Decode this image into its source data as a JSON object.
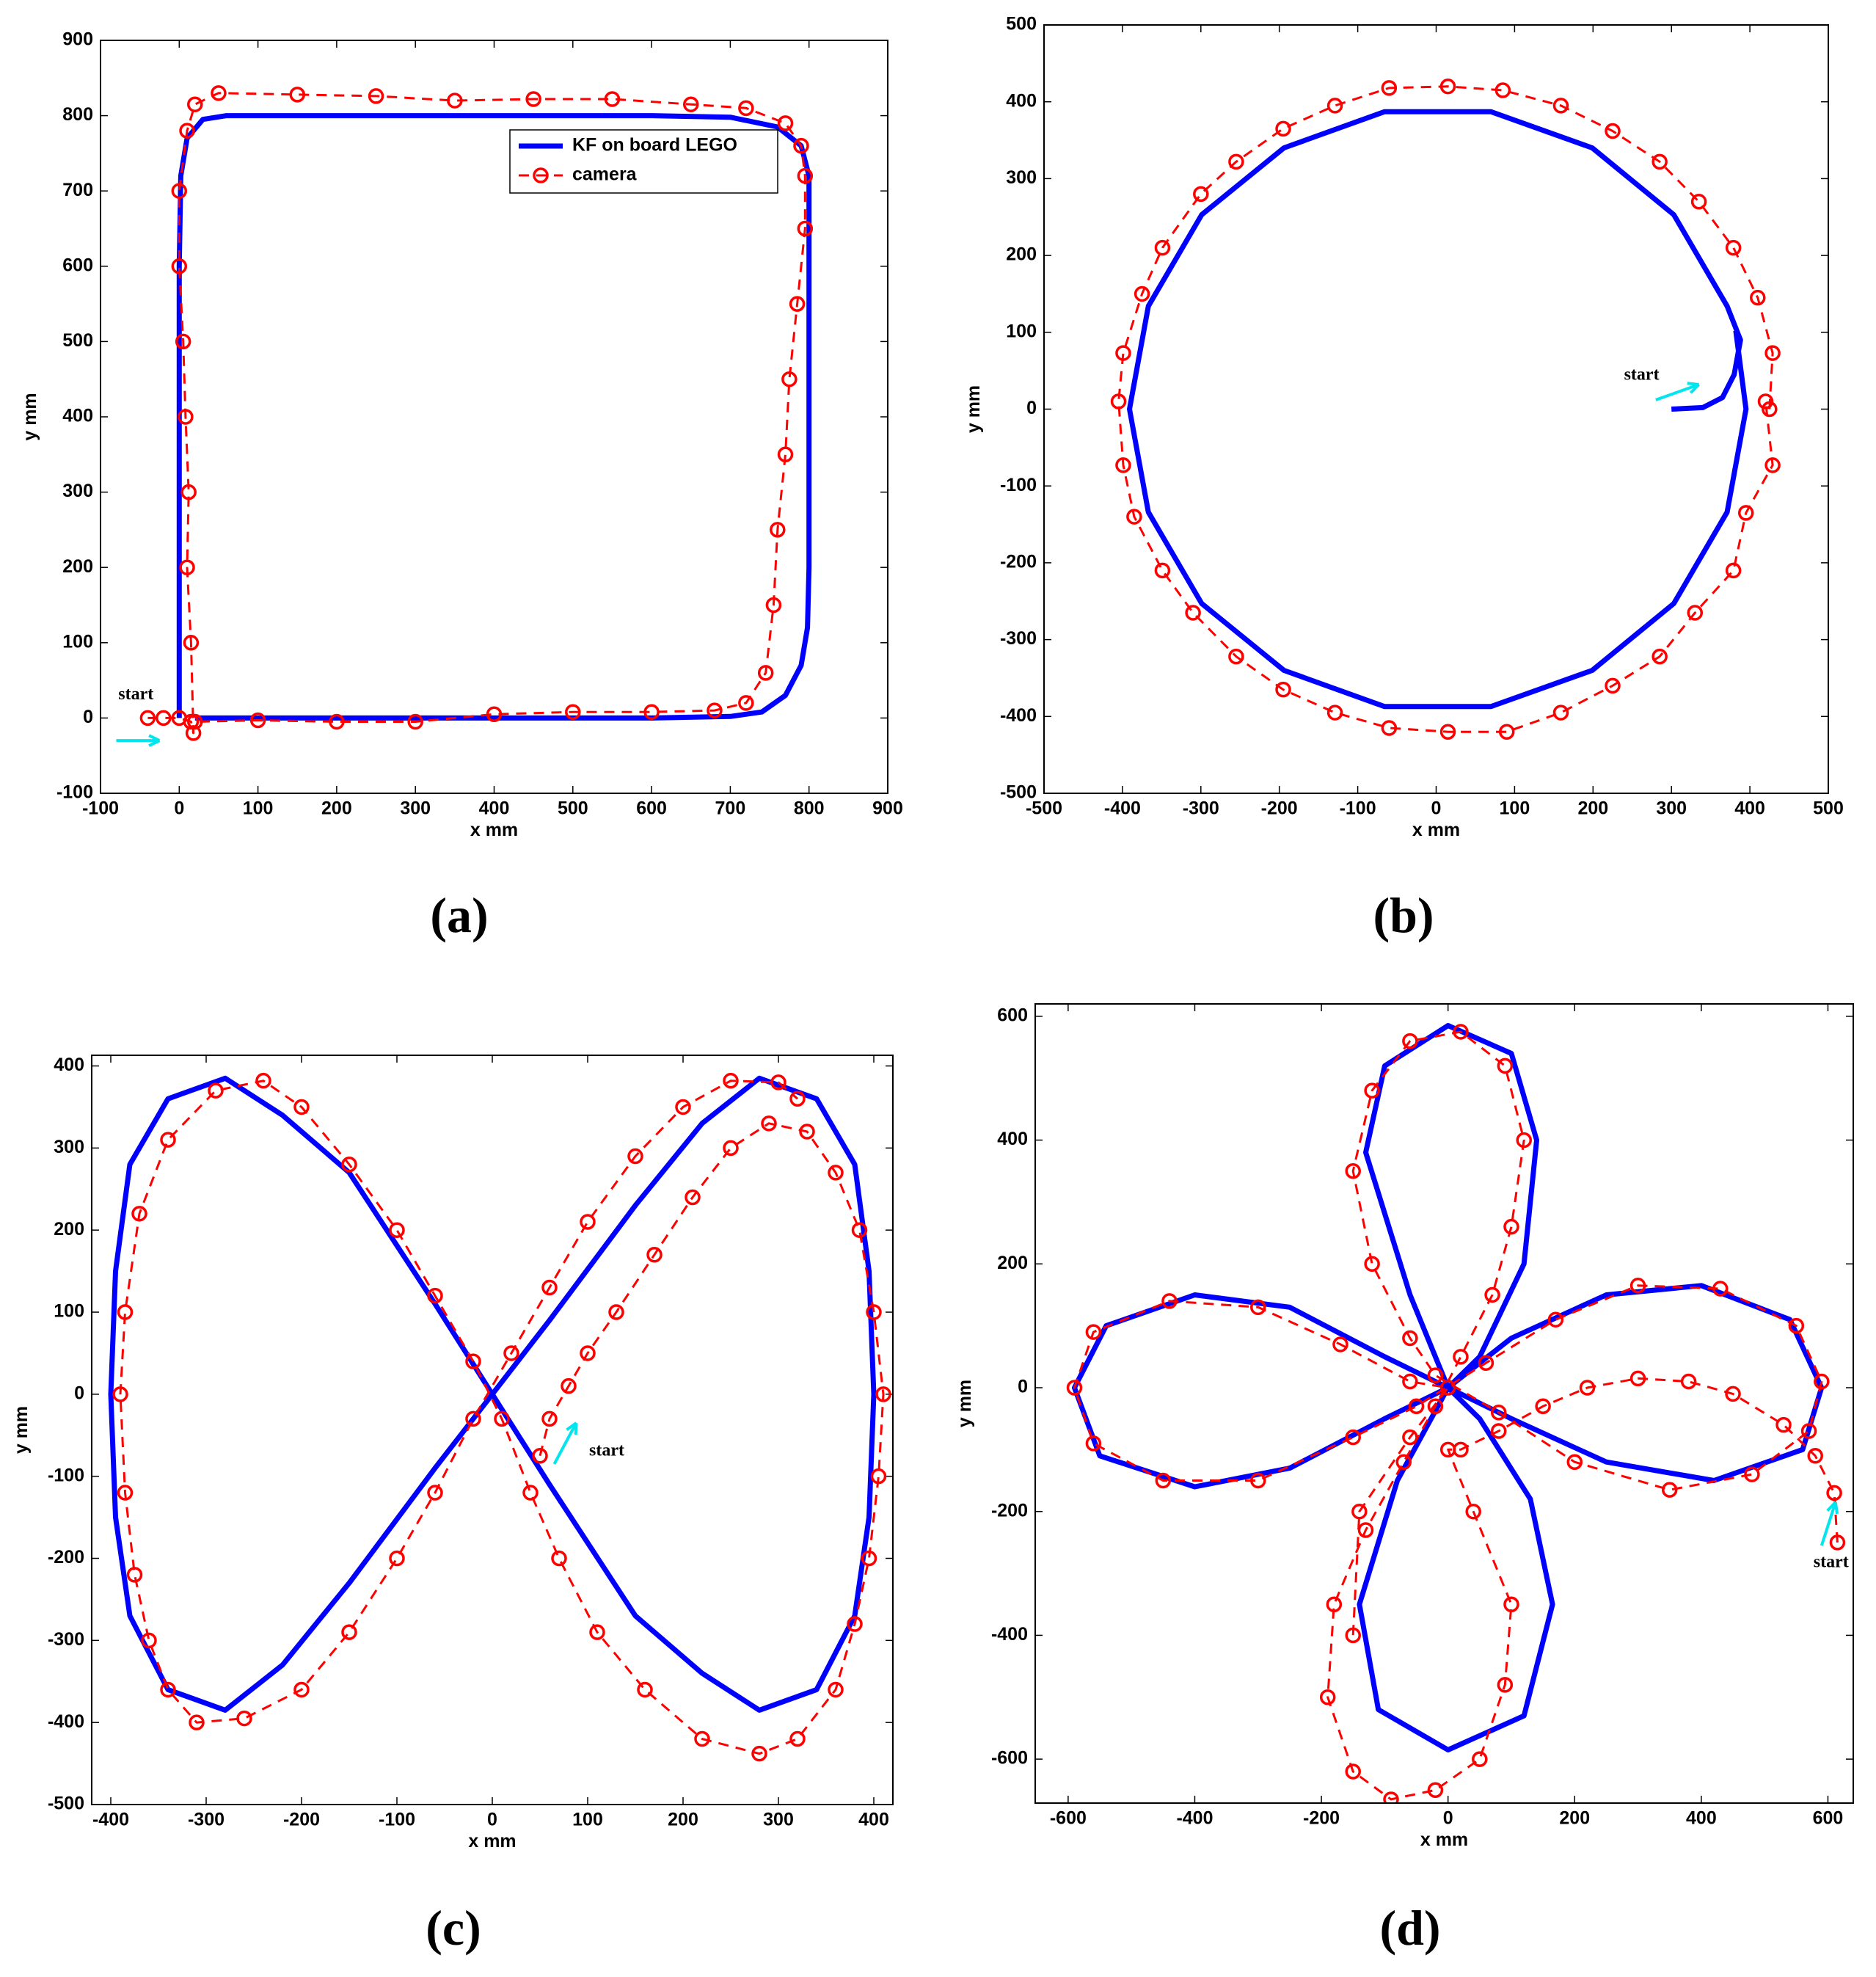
{
  "chart_data": [
    {
      "type": "line",
      "label": "(a)",
      "xlabel": "x mm",
      "ylabel": "y mm",
      "annotation": "start",
      "legend": "upper right",
      "xlim": [
        -100,
        900
      ],
      "ylim": [
        -100,
        900
      ],
      "xticks": [
        -100,
        0,
        100,
        200,
        300,
        400,
        500,
        600,
        700,
        800,
        900
      ],
      "yticks": [
        -100,
        0,
        100,
        200,
        300,
        400,
        500,
        600,
        700,
        800,
        900
      ],
      "series": [
        {
          "name": "KF on board LEGO",
          "color": "#0000ff",
          "linestyle": "solid",
          "x": [
            0,
            0,
            0,
            0,
            2,
            10,
            30,
            60,
            200,
            400,
            600,
            700,
            760,
            790,
            800,
            800,
            800,
            800,
            798,
            790,
            770,
            740,
            700,
            600,
            400,
            200,
            20
          ],
          "values": [
            0,
            200,
            400,
            600,
            720,
            770,
            795,
            800,
            800,
            800,
            800,
            798,
            785,
            760,
            720,
            600,
            400,
            200,
            120,
            70,
            30,
            8,
            2,
            0,
            0,
            0,
            0
          ]
        },
        {
          "name": "camera",
          "color": "#ff0000",
          "linestyle": "dashed",
          "marker": "o",
          "x": [
            -40,
            -20,
            0,
            15,
            18,
            15,
            10,
            12,
            8,
            5,
            0,
            0,
            10,
            20,
            50,
            150,
            250,
            350,
            450,
            550,
            650,
            720,
            770,
            790,
            795,
            795,
            785,
            775,
            770,
            760,
            755,
            745,
            720,
            680,
            600,
            500,
            400,
            300,
            200,
            100,
            20
          ],
          "values": [
            0,
            0,
            0,
            -5,
            -20,
            100,
            200,
            300,
            400,
            500,
            600,
            700,
            780,
            815,
            830,
            828,
            826,
            820,
            822,
            822,
            815,
            810,
            790,
            760,
            720,
            650,
            550,
            450,
            350,
            250,
            150,
            60,
            20,
            10,
            8,
            8,
            5,
            -5,
            -5,
            -3,
            -5
          ]
        }
      ]
    },
    {
      "type": "line",
      "label": "(b)",
      "xlabel": "x mm",
      "ylabel": "y mm",
      "annotation": "start",
      "xlim": [
        -500,
        500
      ],
      "ylim": [
        -500,
        500
      ],
      "xticks": [
        -500,
        -400,
        -300,
        -200,
        -100,
        0,
        100,
        200,
        300,
        400,
        500
      ],
      "yticks": [
        -500,
        -400,
        -300,
        -200,
        -100,
        0,
        100,
        200,
        300,
        400,
        500
      ],
      "series": [
        {
          "color": "#0000ff",
          "linestyle": "solid",
          "x": [
            300,
            340,
            365,
            380,
            388,
            371,
            303,
            199,
            70,
            -66,
            -194,
            -299,
            -367,
            -391,
            -367,
            -299,
            -194,
            -66,
            70,
            199,
            303,
            371,
            395,
            382
          ],
          "values": [
            0,
            2,
            15,
            45,
            90,
            134,
            253,
            340,
            387,
            387,
            340,
            253,
            134,
            0,
            -134,
            -253,
            -340,
            -387,
            -387,
            -340,
            -253,
            -134,
            0,
            102
          ]
        },
        {
          "color": "#ff0000",
          "linestyle": "dashed",
          "marker": "o",
          "x": [
            425,
            429,
            410,
            379,
            335,
            285,
            225,
            159,
            85,
            15,
            -60,
            -129,
            -195,
            -255,
            -300,
            -349,
            -375,
            -399,
            -405,
            -399,
            -385,
            -349,
            -310,
            -255,
            -195,
            -129,
            -60,
            15,
            90,
            159,
            225,
            285,
            330,
            379,
            395,
            429,
            420
          ],
          "values": [
            0,
            73,
            145,
            210,
            270,
            322,
            362,
            395,
            415,
            420,
            418,
            395,
            365,
            322,
            280,
            210,
            150,
            73,
            10,
            -73,
            -140,
            -210,
            -265,
            -322,
            -365,
            -395,
            -415,
            -420,
            -420,
            -395,
            -360,
            -322,
            -265,
            -210,
            -135,
            -73,
            10
          ]
        }
      ]
    },
    {
      "type": "line",
      "label": "(c)",
      "xlabel": "x mm",
      "ylabel": "y mm",
      "annotation": "start",
      "xlim": [
        -420,
        420
      ],
      "ylim": [
        -500,
        413
      ],
      "xticks": [
        -400,
        -300,
        -200,
        -100,
        0,
        100,
        200,
        300,
        400
      ],
      "yticks": [
        -500,
        -400,
        -300,
        -200,
        -100,
        0,
        100,
        200,
        300,
        400
      ],
      "series": [
        {
          "color": "#0000ff",
          "linestyle": "solid",
          "x": [
            0,
            60,
            150,
            220,
            280,
            340,
            380,
            395,
            400,
            395,
            380,
            340,
            280,
            220,
            150,
            60,
            0,
            -60,
            -150,
            -220,
            -280,
            -340,
            -380,
            -395,
            -400,
            -395,
            -380,
            -340,
            -280,
            -220,
            -150,
            -60,
            0
          ],
          "values": [
            0,
            90,
            230,
            330,
            385,
            360,
            280,
            150,
            0,
            -150,
            -270,
            -360,
            -385,
            -340,
            -270,
            -110,
            0,
            110,
            270,
            340,
            385,
            360,
            280,
            150,
            0,
            -150,
            -270,
            -360,
            -385,
            -330,
            -230,
            -90,
            0
          ]
        },
        {
          "color": "#ff0000",
          "linestyle": "dashed",
          "marker": "o",
          "x": [
            50,
            60,
            80,
            100,
            130,
            170,
            210,
            250,
            290,
            330,
            360,
            385,
            400,
            410,
            405,
            395,
            380,
            360,
            320,
            280,
            220,
            160,
            110,
            70,
            40,
            10,
            -20,
            -60,
            -100,
            -150,
            -200,
            -240,
            -290,
            -340,
            -370,
            -385,
            -390,
            -385,
            -375,
            -360,
            -340,
            -310,
            -260,
            -200,
            -150,
            -100,
            -60,
            -20,
            20,
            60,
            100,
            150,
            200,
            250,
            300,
            320
          ],
          "values": [
            -75,
            -30,
            10,
            50,
            100,
            170,
            240,
            300,
            330,
            320,
            270,
            200,
            100,
            0,
            -100,
            -200,
            -280,
            -360,
            -420,
            -438,
            -420,
            -360,
            -290,
            -200,
            -120,
            -30,
            40,
            120,
            200,
            280,
            350,
            382,
            370,
            310,
            220,
            100,
            0,
            -120,
            -220,
            -300,
            -360,
            -400,
            -395,
            -360,
            -290,
            -200,
            -120,
            -30,
            50,
            130,
            210,
            290,
            350,
            382,
            380,
            360
          ]
        }
      ]
    },
    {
      "type": "line",
      "label": "(d)",
      "xlabel": "x mm",
      "ylabel": "y mm",
      "annotation": "start",
      "xlim": [
        -652,
        640
      ],
      "ylim": [
        -671,
        620
      ],
      "xticks": [
        -600,
        -400,
        -200,
        0,
        200,
        400,
        600
      ],
      "yticks": [
        -600,
        -400,
        -200,
        0,
        200,
        400,
        600
      ],
      "series": [
        {
          "color": "#0000ff",
          "linestyle": "solid",
          "x": [
            0,
            -60,
            -130,
            -100,
            0,
            100,
            140,
            120,
            50,
            0,
            100,
            250,
            400,
            540,
            590,
            560,
            420,
            250,
            100,
            0,
            -80,
            -140,
            -110,
            0,
            120,
            165,
            130,
            50,
            0,
            -100,
            -250,
            -400,
            -540,
            -590,
            -550,
            -400,
            -250,
            -100,
            0
          ],
          "values": [
            0,
            150,
            380,
            520,
            585,
            540,
            400,
            200,
            50,
            0,
            80,
            150,
            165,
            110,
            0,
            -100,
            -150,
            -120,
            -50,
            0,
            -150,
            -350,
            -520,
            -585,
            -530,
            -350,
            -180,
            -50,
            0,
            50,
            130,
            150,
            100,
            0,
            -110,
            -160,
            -130,
            -50,
            0
          ]
        },
        {
          "color": "#ff0000",
          "linestyle": "dashed",
          "marker": "o",
          "x": [
            615,
            610,
            580,
            530,
            450,
            380,
            300,
            220,
            150,
            80,
            20,
            0,
            40,
            100,
            90,
            50,
            -20,
            -90,
            -150,
            -190,
            -180,
            -130,
            -70,
            -20,
            20,
            70,
            100,
            120,
            90,
            20,
            -60,
            -120,
            -150,
            -120,
            -60,
            -20,
            80,
            200,
            350,
            480,
            570,
            590,
            550,
            430,
            300,
            170,
            60,
            -50,
            -150,
            -300,
            -450,
            -560,
            -590,
            -560,
            -440,
            -300,
            -170,
            -60,
            0,
            -60,
            -140,
            -150
          ],
          "values": [
            -250,
            -170,
            -110,
            -60,
            -10,
            10,
            15,
            0,
            -30,
            -70,
            -100,
            -100,
            -200,
            -350,
            -480,
            -600,
            -650,
            -665,
            -620,
            -500,
            -350,
            -230,
            -120,
            -30,
            50,
            150,
            260,
            400,
            520,
            575,
            560,
            480,
            350,
            200,
            80,
            20,
            -40,
            -120,
            -165,
            -140,
            -70,
            10,
            100,
            160,
            165,
            110,
            40,
            -30,
            -80,
            -150,
            -150,
            -90,
            0,
            90,
            140,
            130,
            70,
            10,
            0,
            -80,
            -200,
            -400
          ]
        }
      ]
    }
  ]
}
